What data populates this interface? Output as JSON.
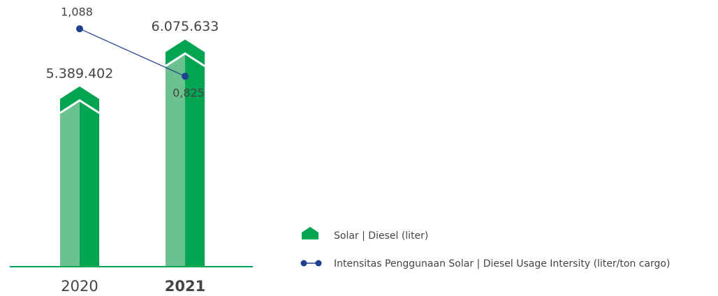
{
  "chart_data": {
    "type": "bar",
    "categories": [
      "2020",
      "2021"
    ],
    "series": [
      {
        "name": "Solar | Diesel (liter)",
        "color": "#00a551",
        "values": [
          5389402,
          6075633
        ],
        "value_labels": [
          "5.389.402",
          "6.075.633"
        ]
      },
      {
        "name": "Intensitas Penggunaan Solar | Diesel Usage Intersity (liter/ton cargo)",
        "color": "#1f3f8f",
        "type": "line",
        "axis": "y2",
        "values": [
          1.088,
          0.825
        ],
        "value_labels": [
          "1,088",
          "0,825"
        ]
      }
    ],
    "ylim": [
      2750000,
      6450000
    ],
    "y2lim": [
      -0.23,
      1.17
    ],
    "legend": "bottom-right"
  }
}
